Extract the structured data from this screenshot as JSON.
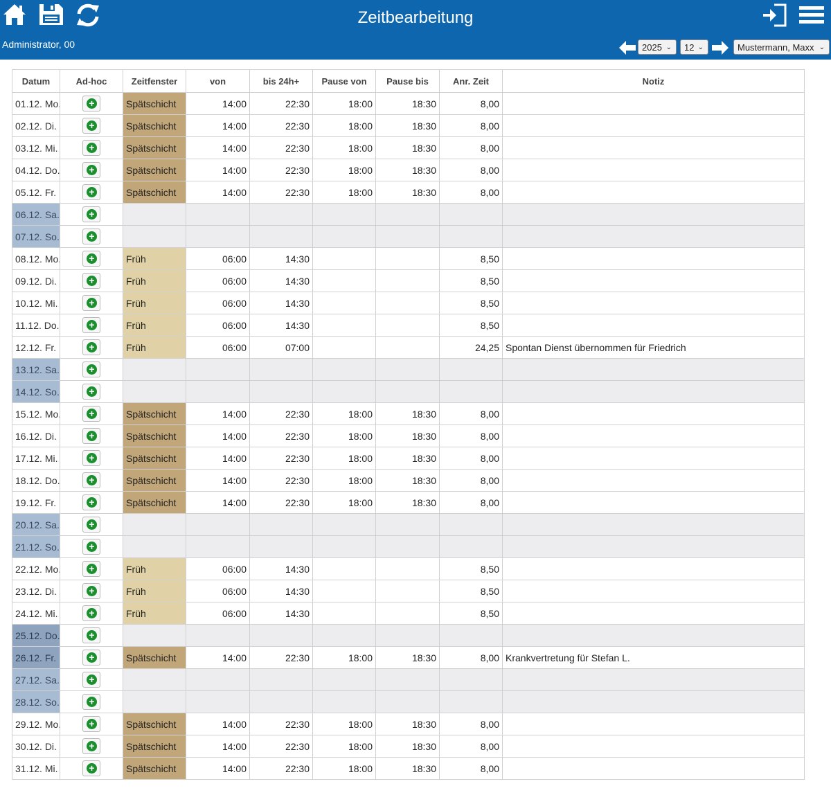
{
  "header": {
    "title": "Zeitbearbeitung",
    "user": "Administrator, 00",
    "year": "2025",
    "month": "12",
    "employee": "Mustermann, Maxx"
  },
  "columns": [
    "Datum",
    "Ad-hoc",
    "Zeitfenster",
    "von",
    "bis 24h+",
    "Pause von",
    "Pause bis",
    "Anr. Zeit",
    "Notiz"
  ],
  "colors": {
    "header_bg": "#0e67ae",
    "spaet": "#c0a678",
    "frueh": "#e0d2a6",
    "weekend": "#a7bcd3",
    "holiday": "#8da3be",
    "add_icon": "#1a8f2e"
  },
  "rows": [
    {
      "date": "01.12. Mo.",
      "shift": "Spätschicht",
      "von": "14:00",
      "bis": "22:30",
      "pv": "18:00",
      "pb": "18:30",
      "anr": "8,00",
      "note": ""
    },
    {
      "date": "02.12. Di.",
      "shift": "Spätschicht",
      "von": "14:00",
      "bis": "22:30",
      "pv": "18:00",
      "pb": "18:30",
      "anr": "8,00",
      "note": ""
    },
    {
      "date": "03.12. Mi.",
      "shift": "Spätschicht",
      "von": "14:00",
      "bis": "22:30",
      "pv": "18:00",
      "pb": "18:30",
      "anr": "8,00",
      "note": ""
    },
    {
      "date": "04.12. Do.",
      "shift": "Spätschicht",
      "von": "14:00",
      "bis": "22:30",
      "pv": "18:00",
      "pb": "18:30",
      "anr": "8,00",
      "note": ""
    },
    {
      "date": "05.12. Fr.",
      "shift": "Spätschicht",
      "von": "14:00",
      "bis": "22:30",
      "pv": "18:00",
      "pb": "18:30",
      "anr": "8,00",
      "note": ""
    },
    {
      "date": "06.12. Sa.",
      "type": "weekend",
      "shift": "",
      "von": "",
      "bis": "",
      "pv": "",
      "pb": "",
      "anr": "",
      "note": ""
    },
    {
      "date": "07.12. So.",
      "type": "weekend",
      "shift": "",
      "von": "",
      "bis": "",
      "pv": "",
      "pb": "",
      "anr": "",
      "note": ""
    },
    {
      "date": "08.12. Mo.",
      "shift": "Früh",
      "von": "06:00",
      "bis": "14:30",
      "pv": "",
      "pb": "",
      "anr": "8,50",
      "note": ""
    },
    {
      "date": "09.12. Di.",
      "shift": "Früh",
      "von": "06:00",
      "bis": "14:30",
      "pv": "",
      "pb": "",
      "anr": "8,50",
      "note": ""
    },
    {
      "date": "10.12. Mi.",
      "shift": "Früh",
      "von": "06:00",
      "bis": "14:30",
      "pv": "",
      "pb": "",
      "anr": "8,50",
      "note": ""
    },
    {
      "date": "11.12. Do.",
      "shift": "Früh",
      "von": "06:00",
      "bis": "14:30",
      "pv": "",
      "pb": "",
      "anr": "8,50",
      "note": ""
    },
    {
      "date": "12.12. Fr.",
      "shift": "Früh",
      "von": "06:00",
      "bis": "07:00",
      "pv": "",
      "pb": "",
      "anr": "24,25",
      "note": "Spontan Dienst übernommen für Friedrich"
    },
    {
      "date": "13.12. Sa.",
      "type": "weekend",
      "shift": "",
      "von": "",
      "bis": "",
      "pv": "",
      "pb": "",
      "anr": "",
      "note": ""
    },
    {
      "date": "14.12. So.",
      "type": "weekend",
      "shift": "",
      "von": "",
      "bis": "",
      "pv": "",
      "pb": "",
      "anr": "",
      "note": ""
    },
    {
      "date": "15.12. Mo.",
      "shift": "Spätschicht",
      "von": "14:00",
      "bis": "22:30",
      "pv": "18:00",
      "pb": "18:30",
      "anr": "8,00",
      "note": ""
    },
    {
      "date": "16.12. Di.",
      "shift": "Spätschicht",
      "von": "14:00",
      "bis": "22:30",
      "pv": "18:00",
      "pb": "18:30",
      "anr": "8,00",
      "note": ""
    },
    {
      "date": "17.12. Mi.",
      "shift": "Spätschicht",
      "von": "14:00",
      "bis": "22:30",
      "pv": "18:00",
      "pb": "18:30",
      "anr": "8,00",
      "note": ""
    },
    {
      "date": "18.12. Do.",
      "shift": "Spätschicht",
      "von": "14:00",
      "bis": "22:30",
      "pv": "18:00",
      "pb": "18:30",
      "anr": "8,00",
      "note": ""
    },
    {
      "date": "19.12. Fr.",
      "shift": "Spätschicht",
      "von": "14:00",
      "bis": "22:30",
      "pv": "18:00",
      "pb": "18:30",
      "anr": "8,00",
      "note": ""
    },
    {
      "date": "20.12. Sa.",
      "type": "weekend",
      "shift": "",
      "von": "",
      "bis": "",
      "pv": "",
      "pb": "",
      "anr": "",
      "note": ""
    },
    {
      "date": "21.12. So.",
      "type": "weekend",
      "shift": "",
      "von": "",
      "bis": "",
      "pv": "",
      "pb": "",
      "anr": "",
      "note": ""
    },
    {
      "date": "22.12. Mo.",
      "shift": "Früh",
      "von": "06:00",
      "bis": "14:30",
      "pv": "",
      "pb": "",
      "anr": "8,50",
      "note": ""
    },
    {
      "date": "23.12. Di.",
      "shift": "Früh",
      "von": "06:00",
      "bis": "14:30",
      "pv": "",
      "pb": "",
      "anr": "8,50",
      "note": ""
    },
    {
      "date": "24.12. Mi.",
      "shift": "Früh",
      "von": "06:00",
      "bis": "14:30",
      "pv": "",
      "pb": "",
      "anr": "8,50",
      "note": ""
    },
    {
      "date": "25.12. Do.",
      "type": "holiday",
      "shift": "",
      "von": "",
      "bis": "",
      "pv": "",
      "pb": "",
      "anr": "",
      "note": ""
    },
    {
      "date": "26.12. Fr.",
      "type": "holiday",
      "shift": "Spätschicht",
      "von": "14:00",
      "bis": "22:30",
      "pv": "18:00",
      "pb": "18:30",
      "anr": "8,00",
      "note": "Krankvertretung für Stefan L."
    },
    {
      "date": "27.12. Sa.",
      "type": "weekend",
      "shift": "",
      "von": "",
      "bis": "",
      "pv": "",
      "pb": "",
      "anr": "",
      "note": ""
    },
    {
      "date": "28.12. So.",
      "type": "weekend",
      "shift": "",
      "von": "",
      "bis": "",
      "pv": "",
      "pb": "",
      "anr": "",
      "note": ""
    },
    {
      "date": "29.12. Mo.",
      "shift": "Spätschicht",
      "von": "14:00",
      "bis": "22:30",
      "pv": "18:00",
      "pb": "18:30",
      "anr": "8,00",
      "note": ""
    },
    {
      "date": "30.12. Di.",
      "shift": "Spätschicht",
      "von": "14:00",
      "bis": "22:30",
      "pv": "18:00",
      "pb": "18:30",
      "anr": "8,00",
      "note": ""
    },
    {
      "date": "31.12. Mi.",
      "shift": "Spätschicht",
      "von": "14:00",
      "bis": "22:30",
      "pv": "18:00",
      "pb": "18:30",
      "anr": "8,00",
      "note": ""
    }
  ]
}
